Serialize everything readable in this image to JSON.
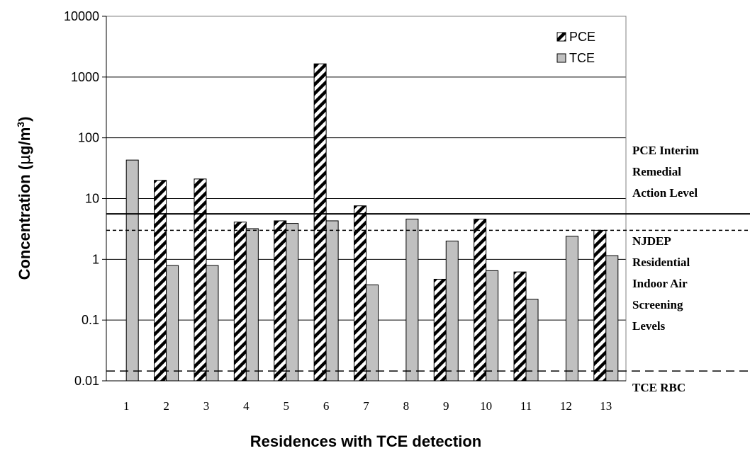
{
  "chart_data": {
    "type": "bar",
    "yscale": "log",
    "ylim": [
      0.01,
      10000
    ],
    "yticks": [
      "0.01",
      "0.1",
      "1",
      "10",
      "100",
      "1000",
      "10000"
    ],
    "ytick_values": [
      0.01,
      0.1,
      1,
      10,
      100,
      1000,
      10000
    ],
    "xlabel": "Residences with TCE detection",
    "ylabel_main": "Concentration (",
    "ylabel_mu": "μ",
    "ylabel_unit": "g/m",
    "ylabel_sup": "3",
    "ylabel_close": ")",
    "categories": [
      "1",
      "2",
      "3",
      "4",
      "5",
      "6",
      "7",
      "8",
      "9",
      "10",
      "11",
      "12",
      "13"
    ],
    "series": [
      {
        "name": "PCE",
        "pattern": "hatch",
        "values": [
          null,
          20,
          21,
          4.1,
          4.3,
          1650,
          7.6,
          null,
          0.47,
          4.6,
          0.62,
          null,
          3.0
        ]
      },
      {
        "name": "TCE",
        "pattern": "gray",
        "color": "#c0c0c0",
        "values": [
          43,
          0.79,
          0.79,
          3.2,
          3.9,
          4.3,
          0.38,
          4.6,
          2.0,
          0.65,
          0.22,
          2.4,
          1.15
        ]
      }
    ],
    "legend_placement": "top-right",
    "reference_lines": [
      {
        "value": 5.6,
        "style": "solid",
        "label_lines": [
          "PCE Interim",
          "Remedial",
          "Action Level"
        ]
      },
      {
        "value": 3.0,
        "style": "dotted",
        "label_lines": [
          "NJDEP",
          "Residential",
          "Indoor Air",
          "Screening",
          "Levels"
        ]
      },
      {
        "value": 0.0145,
        "style": "dashed",
        "label_lines": [
          "TCE RBC"
        ]
      }
    ],
    "grid": "horizontal-major"
  }
}
